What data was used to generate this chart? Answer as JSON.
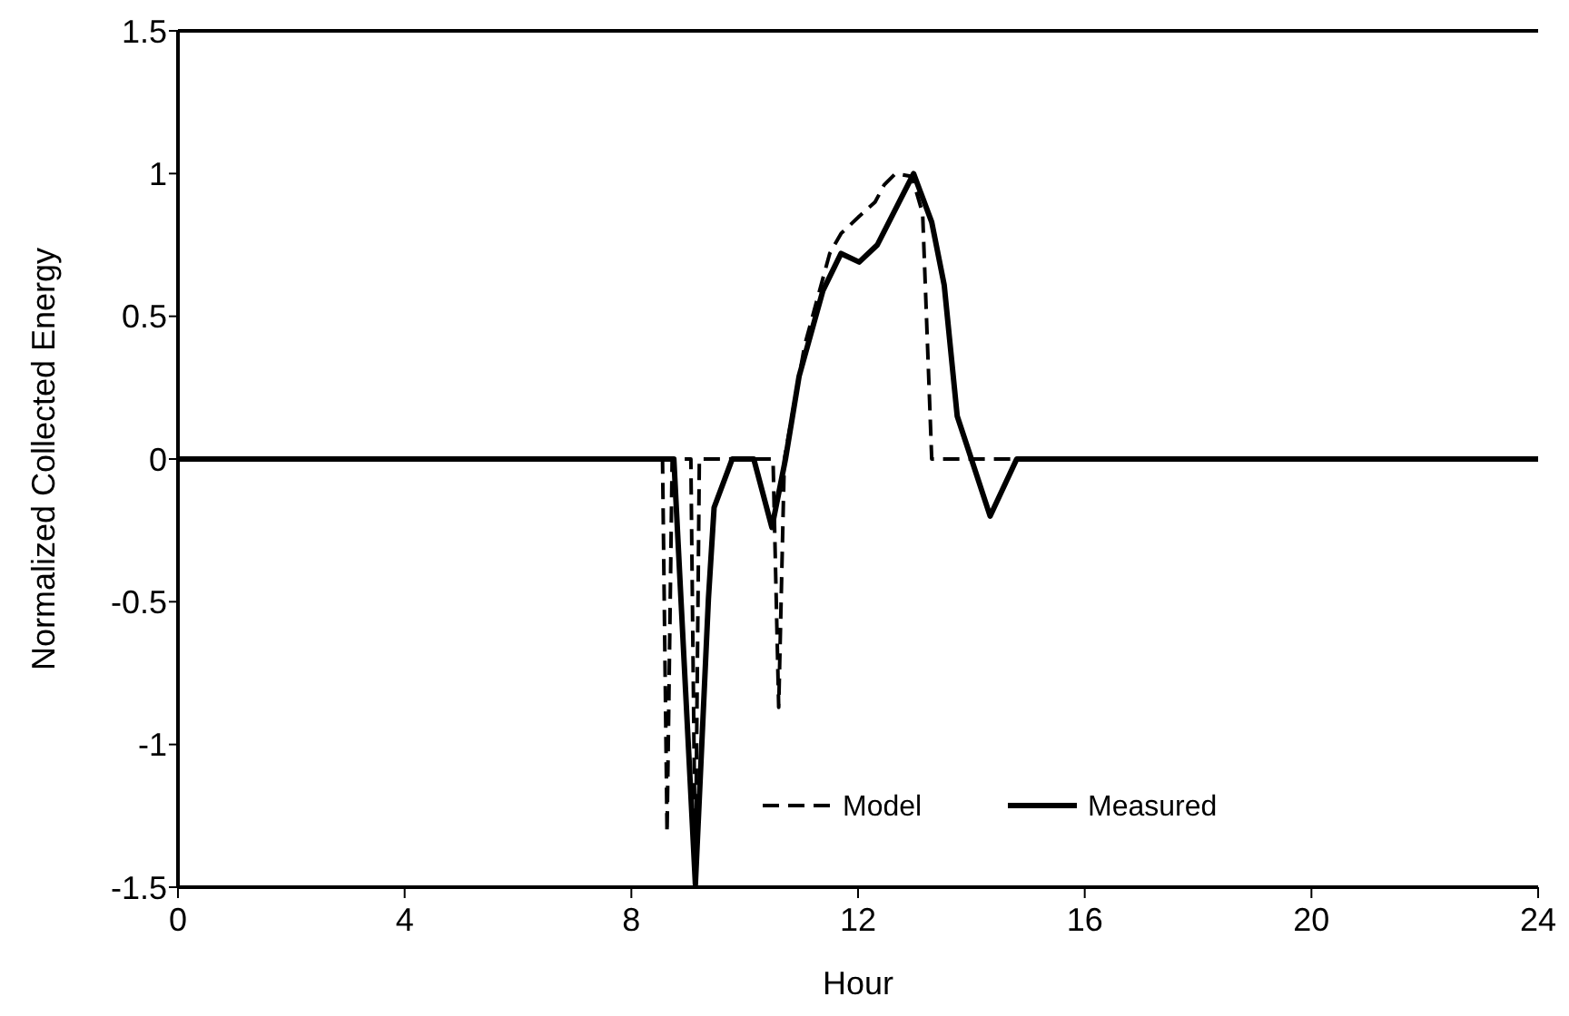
{
  "chart_data": {
    "type": "line",
    "xlabel": "Hour",
    "ylabel": "Normalized Collected Energy",
    "xlim": [
      0,
      24
    ],
    "ylim": [
      -1.5,
      1.5
    ],
    "xticks": [
      0,
      4,
      8,
      12,
      16,
      20,
      24
    ],
    "yticks": [
      1.5,
      1,
      0.5,
      0,
      -0.5,
      -1,
      -1.5
    ],
    "legend": "bottom",
    "grid": false,
    "series": [
      {
        "name": "Model",
        "color": "#000000",
        "line_style": "dashed",
        "x": [
          0,
          8.55,
          8.63,
          8.72,
          9.05,
          9.13,
          9.2,
          10.5,
          10.6,
          10.7,
          11.06,
          11.5,
          11.7,
          12.02,
          12.3,
          12.46,
          12.66,
          12.95,
          13.14,
          13.3,
          24
        ],
        "values": [
          0,
          0,
          -1.31,
          0,
          0,
          -1.45,
          0,
          0,
          -0.87,
          0,
          0.4,
          0.72,
          0.79,
          0.85,
          0.9,
          0.96,
          1.0,
          0.99,
          0.86,
          0,
          0
        ]
      },
      {
        "name": "Measured",
        "color": "#000000",
        "line_style": "solid",
        "x": [
          0,
          8.75,
          9.13,
          9.36,
          9.46,
          9.78,
          10.16,
          10.48,
          10.72,
          10.96,
          11.38,
          11.7,
          12.02,
          12.34,
          12.98,
          13.3,
          13.52,
          13.75,
          14.0,
          14.33,
          14.8,
          24
        ],
        "values": [
          0,
          0,
          -1.49,
          -0.49,
          -0.17,
          0,
          0,
          -0.24,
          0,
          0.29,
          0.59,
          0.72,
          0.69,
          0.75,
          1.0,
          0.83,
          0.61,
          0.15,
          0,
          -0.2,
          0,
          0
        ]
      }
    ]
  }
}
